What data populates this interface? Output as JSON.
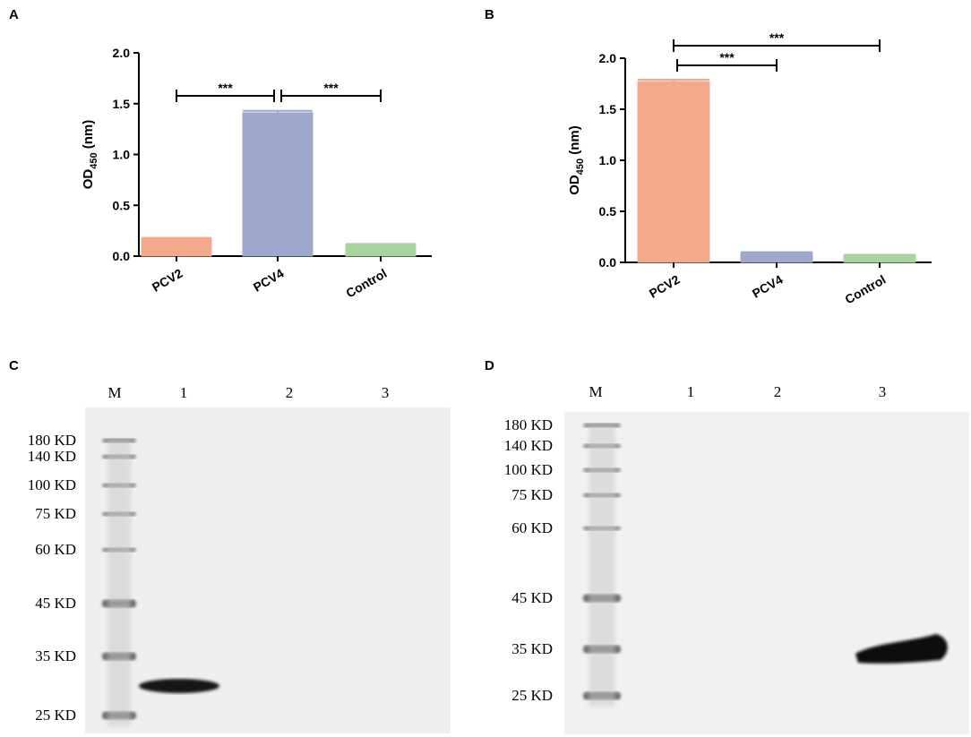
{
  "panels": [
    "A",
    "B",
    "C",
    "D"
  ],
  "chart_data": [
    {
      "type": "bar",
      "ylabel": {
        "main": "OD",
        "sub": "450",
        "unit": " (nm)"
      },
      "categories": [
        "PCV2",
        "PCV4",
        "Control"
      ],
      "values": [
        0.17,
        1.41,
        0.11
      ],
      "errors": [
        0.01,
        0.02,
        0.01
      ],
      "colors": [
        "#f4a98a",
        "#9ea8cc",
        "#a6d39e"
      ],
      "ylim": [
        0,
        2
      ],
      "yticks": [
        {
          "value": 0,
          "label": "0.0"
        },
        0.5,
        {
          "value": 1,
          "label": "1.0"
        },
        1.5,
        {
          "value": 2,
          "label": "2.0"
        }
      ],
      "annotations": [
        {
          "text": "***",
          "from": "PCV2",
          "to": "PCV4"
        },
        {
          "text": "***",
          "from": "PCV4",
          "to": "Control"
        }
      ]
    },
    {
      "type": "bar",
      "ylabel": {
        "main": "OD",
        "sub": "450",
        "unit": " (nm)"
      },
      "categories": [
        "PCV2",
        "PCV4",
        "Control"
      ],
      "values": [
        1.77,
        0.09,
        0.07
      ],
      "errors": [
        0.02,
        0.01,
        0.005
      ],
      "colors": [
        "#f4a98a",
        "#9ea8cc",
        "#a6d39e"
      ],
      "ylim": [
        0,
        2
      ],
      "yticks": [
        {
          "value": 0,
          "label": "0.0"
        },
        0.5,
        {
          "value": 1,
          "label": "1.0"
        },
        1.5,
        {
          "value": 2,
          "label": "2.0"
        }
      ],
      "annotations": [
        {
          "text": "***",
          "from": "PCV2",
          "to": "PCV4"
        },
        {
          "text": "***",
          "from": "PCV2",
          "to": "Control"
        }
      ]
    }
  ],
  "blots": [
    {
      "lanes": [
        "M",
        "1",
        "2",
        "3"
      ],
      "markers": [
        "180 KD",
        "140 KD",
        "100 KD",
        "75 KD",
        "60 KD",
        "45 KD",
        "35 KD",
        "25 KD"
      ]
    },
    {
      "lanes": [
        "M",
        "1",
        "2",
        "3"
      ],
      "markers": [
        "180 KD",
        "140 KD",
        "100 KD",
        "75 KD",
        "60 KD",
        "45 KD",
        "35 KD",
        "25 KD"
      ]
    }
  ]
}
